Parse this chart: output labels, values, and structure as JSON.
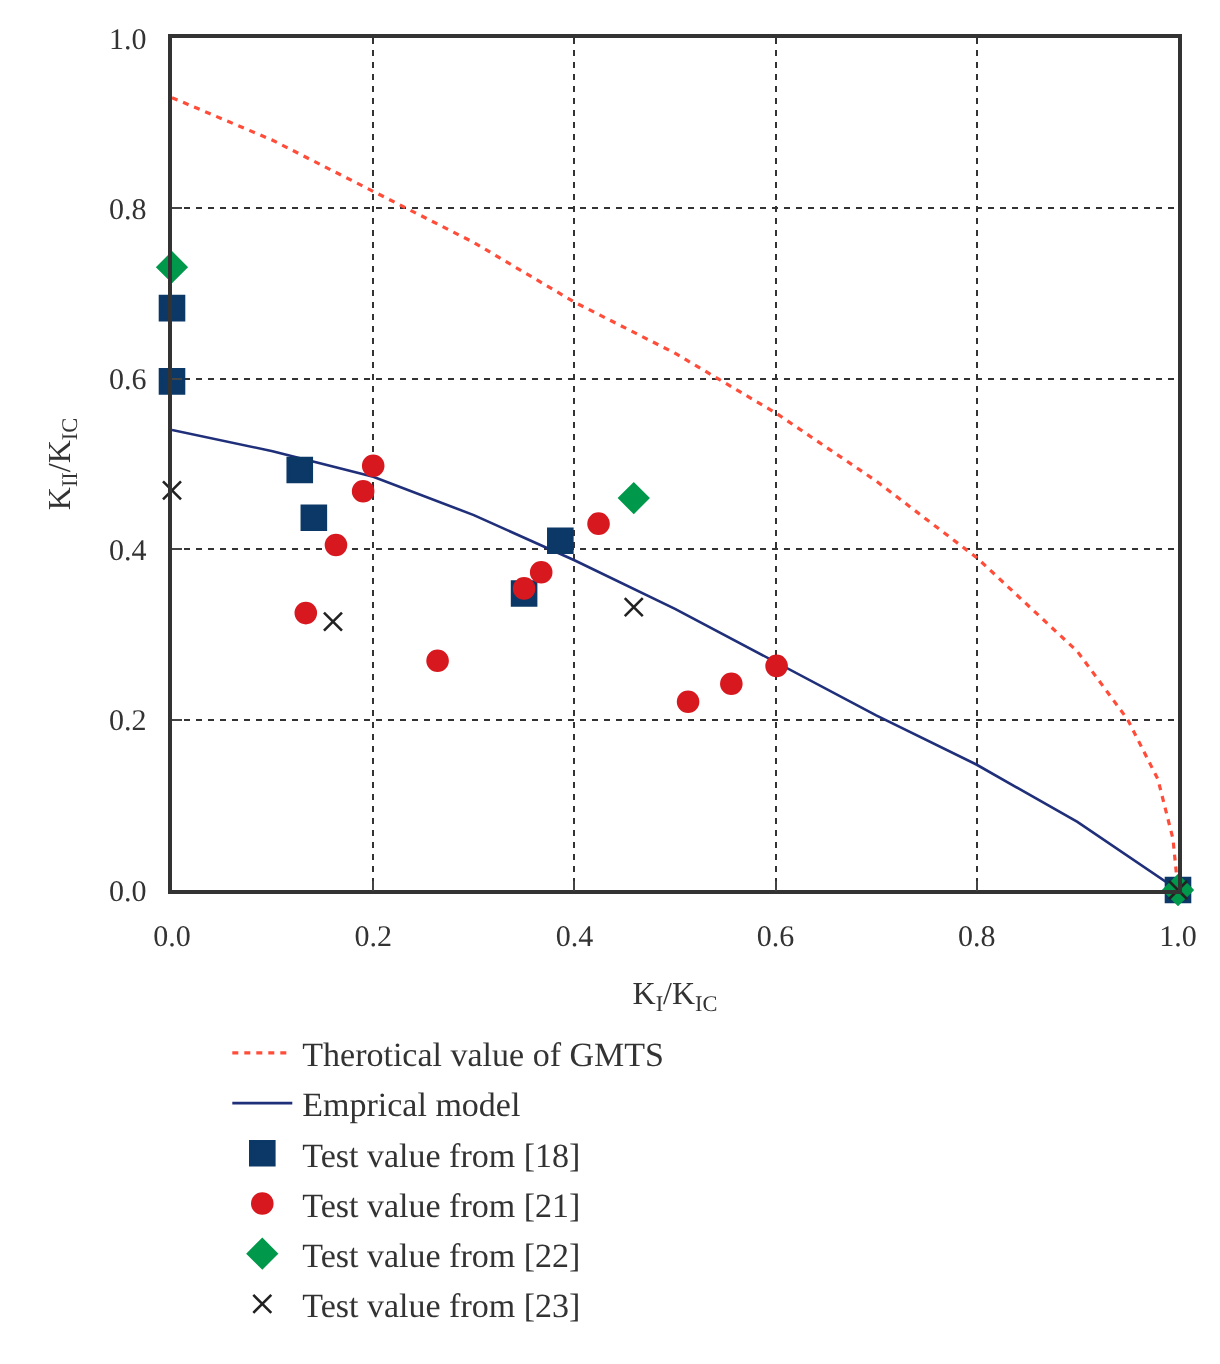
{
  "chart_data": {
    "type": "scatter",
    "xlabel": "K$_{I}$/K$_{IC}$",
    "ylabel": "K$_{II}$/K$_{IC}$",
    "xlim": [
      0,
      1.0
    ],
    "ylim": [
      0,
      1.0
    ],
    "xticks": [
      {
        "value": 0,
        "label": "0.0"
      },
      0.2,
      0.4,
      0.6,
      0.8,
      {
        "value": 1.0,
        "label": "1.0"
      }
    ],
    "yticks": [
      {
        "value": 0,
        "label": "0.0"
      },
      0.2,
      0.4,
      0.6,
      0.8,
      {
        "value": 1.0,
        "label": "1.0"
      }
    ],
    "grid": true,
    "legend": "bottom",
    "series": [
      {
        "name": "Therotical value of GMTS",
        "type": "line",
        "line_style": "dotted",
        "marker": "none",
        "color": "#ff4d3a",
        "x": [
          0,
          0.1,
          0.2,
          0.3,
          0.4,
          0.5,
          0.6,
          0.7,
          0.8,
          0.9,
          0.95,
          0.98,
          0.995,
          1.0
        ],
        "values": [
          0.93,
          0.88,
          0.82,
          0.76,
          0.69,
          0.63,
          0.56,
          0.48,
          0.39,
          0.28,
          0.2,
          0.13,
          0.06,
          0
        ]
      },
      {
        "name": "Emprical model",
        "type": "line",
        "line_style": "solid",
        "marker": "none",
        "color": "#1f2f7a",
        "x": [
          0,
          0.1,
          0.2,
          0.3,
          0.4,
          0.5,
          0.7,
          0.8,
          0.9,
          1.0
        ],
        "values": [
          0.54,
          0.515,
          0.485,
          0.44,
          0.387,
          0.33,
          0.205,
          0.147,
          0.08,
          0
        ]
      },
      {
        "name": "Test value from [18]",
        "marker": "square",
        "color": "#0b3866",
        "x": [
          0,
          0,
          0.127,
          0.141,
          0.35,
          0.386,
          1.0
        ],
        "values": [
          0.683,
          0.597,
          0.493,
          0.437,
          0.348,
          0.41,
          0
        ]
      },
      {
        "name": "Test value from [21]",
        "marker": "circle",
        "color": "#d7191f",
        "x": [
          0.133,
          0.163,
          0.19,
          0.2,
          0.264,
          0.35,
          0.367,
          0.424,
          0.513,
          0.556,
          0.601
        ],
        "values": [
          0.325,
          0.405,
          0.468,
          0.498,
          0.269,
          0.354,
          0.373,
          0.43,
          0.221,
          0.242,
          0.263
        ]
      },
      {
        "name": "Test value from [22]",
        "marker": "diamond",
        "color": "#00984a",
        "x": [
          0,
          0.459,
          1.0
        ],
        "values": [
          0.731,
          0.46,
          0
        ]
      },
      {
        "name": "Test value from [23]",
        "marker": "cross",
        "color": "#222222",
        "x": [
          0,
          0.16,
          0.459,
          1.0
        ],
        "values": [
          0.469,
          0.315,
          0.332,
          0
        ]
      }
    ]
  }
}
